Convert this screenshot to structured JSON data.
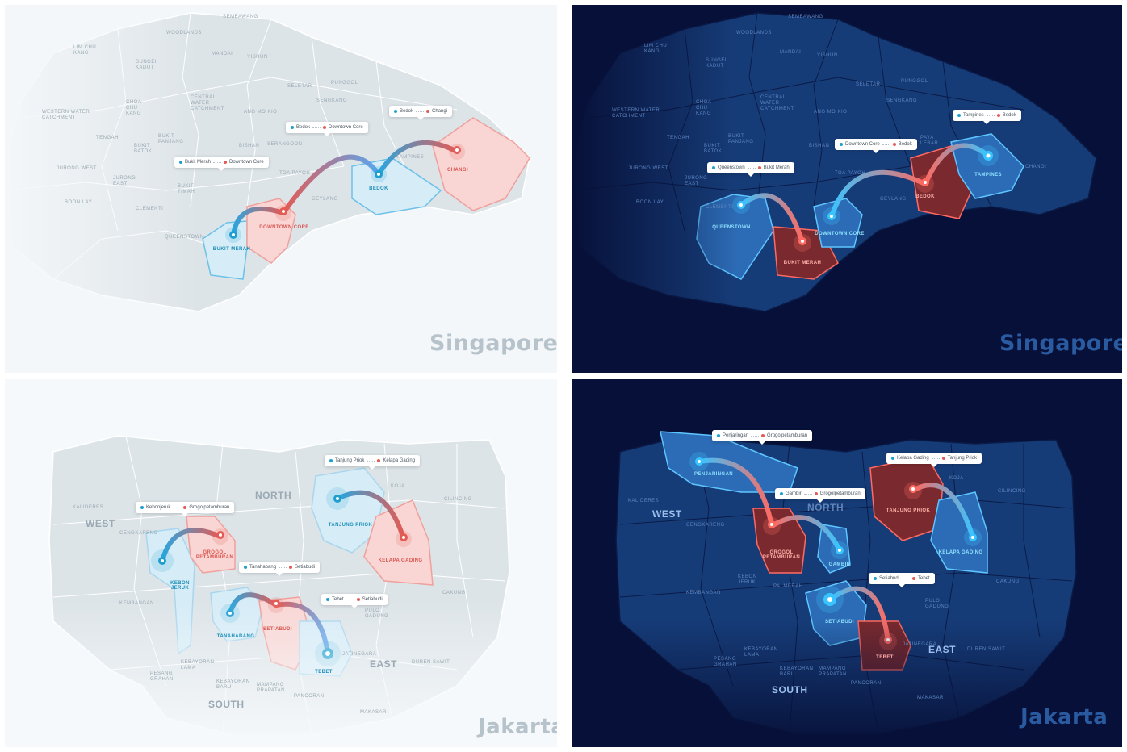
{
  "panels": {
    "sg_light": {
      "city": "Singapore",
      "districts": [
        "Sembawang",
        "Woodlands",
        "Lim Chu Kang",
        "Mandai",
        "Yishun",
        "Sungei Kadut",
        "Seletar",
        "Punggol",
        "Central Water Catchment",
        "Sengkang",
        "Western Water Catchment",
        "Choa Chu Kang",
        "Ang Mo Kio",
        "Tengah",
        "Bukit Panjang",
        "Bukit Batok",
        "Bishan",
        "Serangoon",
        "Jurong West",
        "Jurong East",
        "Toa Payoh",
        "Tampines",
        "Bukit Timah",
        "Geylang",
        "Boon Lay",
        "Clementi",
        "Queenstown"
      ],
      "areas": {
        "bukit_merah": "Bukit Merah",
        "downtown_core": "Downtown Core",
        "bedok": "Bedok",
        "changi": "Changi"
      },
      "routes": [
        {
          "from": "Bukit Merah",
          "to": "Downtown Core"
        },
        {
          "from": "Bedok",
          "to": "Downtown Core"
        },
        {
          "from": "Bedok",
          "to": "Changi"
        }
      ]
    },
    "sg_dark": {
      "city": "Singapore",
      "districts": [
        "Sembawang",
        "Woodlands",
        "Lim Chu Kang",
        "Mandai",
        "Yishun",
        "Sungei Kadut",
        "Seletar",
        "Punggol",
        "Central Water Catchment",
        "Sengkang",
        "Western Water Catchment",
        "Choa Chu Kang",
        "Ang Mo Kio",
        "Tengah",
        "Bukit Panjang",
        "Bukit Batok",
        "Bishan",
        "Paya Lebar",
        "Jurong West",
        "Jurong East",
        "Toa Payoh",
        "Changi",
        "Geylang",
        "Boon Lay",
        "Clementi"
      ],
      "areas": {
        "queenstown": "Queenstown",
        "bukit_merah": "Bukit Merah",
        "downtown_core": "Downtown Core",
        "bedok": "Bedok",
        "tampines": "Tampines"
      },
      "routes": [
        {
          "from": "Queenstown",
          "to": "Bukit Merah"
        },
        {
          "from": "Downtown Core",
          "to": "Bedok"
        },
        {
          "from": "Tampines",
          "to": "Bedok"
        }
      ]
    },
    "jk_light": {
      "city": "Jakarta",
      "regions": [
        "West",
        "North",
        "East",
        "South"
      ],
      "districts": [
        "Kalideres",
        "Cengkareng",
        "Kembangan",
        "Koja",
        "Cilincing",
        "Cakung",
        "Pulo Gadung",
        "Duren Sawit",
        "Pesang Grahan",
        "Kebayoran Lama",
        "Kebayoran Baru",
        "Mampang Prapatan",
        "Pancoran",
        "Makasar",
        "Jatinegara"
      ],
      "areas": {
        "kebon_jeruk": "Kebon Jeruk",
        "grogol": "Grogol Petamburan",
        "tanahabang": "Tanahabang",
        "setiabudi": "Setiabudi",
        "tebet": "Tebet",
        "tanjung_priok": "Tanjung Priok",
        "kelapa_gading": "Kelapa Gading"
      },
      "routes": [
        {
          "from": "Kebonjeruk",
          "to": "Grogolpetamburan"
        },
        {
          "from": "Tanahabang",
          "to": "Setiabudi"
        },
        {
          "from": "Tebet",
          "to": "Setiabudi"
        },
        {
          "from": "Tanjung Priok",
          "to": "Kelapa Gading"
        }
      ]
    },
    "jk_dark": {
      "city": "Jakarta",
      "regions": [
        "West",
        "North",
        "East",
        "South"
      ],
      "districts": [
        "Kalideres",
        "Cengkareng",
        "Kebon Jeruk",
        "Kembangan",
        "Palmerah",
        "Koja",
        "Cilincing",
        "Cakung",
        "Pulo Gadung",
        "Duren Sawit",
        "Pesang Grahan",
        "Kebayoran Lama",
        "Kebayoran Baru",
        "Mampang Prapatan",
        "Pancoran",
        "Makasar",
        "Jatinegara"
      ],
      "areas": {
        "penjaringan": "Penjaringan",
        "grogol": "Grogol Petamburan",
        "gambir": "Gambir",
        "tanjung_priok": "Tanjung Priok",
        "kelapa_gading": "Kelapa Gading",
        "setiabudi": "Setiabudi",
        "tebet": "Tebet"
      },
      "routes": [
        {
          "from": "Penjaringan",
          "to": "Grogolpetamburan"
        },
        {
          "from": "Gambir",
          "to": "Grogolpetamburan"
        },
        {
          "from": "Kelapa Gading",
          "to": "Tanjung Priok"
        },
        {
          "from": "Setiabudi",
          "to": "Tebet"
        }
      ]
    }
  },
  "colors": {
    "light_land": "#dde4e8",
    "light_border": "#ffffff",
    "dark_bg": "#071038",
    "dark_land": "#163c78",
    "dark_border": "#0a1b48",
    "blue": "#1f9fd0",
    "red": "#e45a55",
    "blue_fill": "#d6ecf7",
    "red_fill": "#f9d6d4"
  },
  "icons": [
    "map-pin-icon",
    "location-dot-icon",
    "route-arrow-icon"
  ]
}
